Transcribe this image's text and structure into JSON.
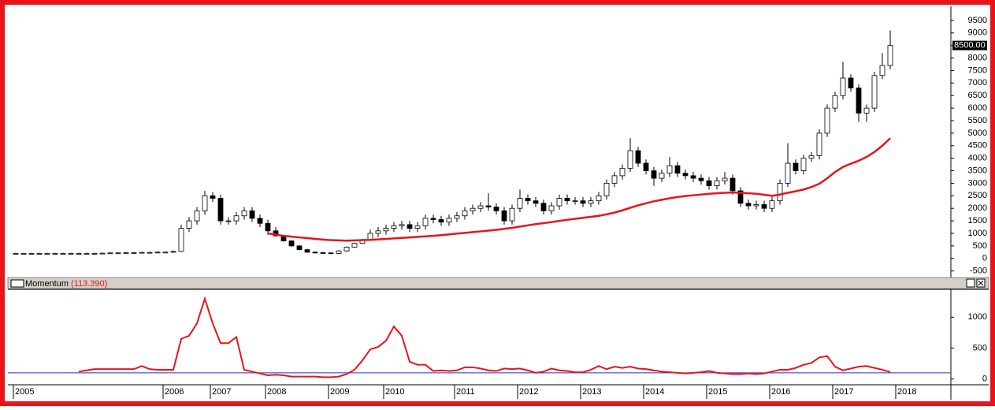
{
  "chart_data": [
    {
      "type": "candlestick",
      "categories": [
        "2005",
        null,
        null,
        null,
        null,
        null,
        null,
        null,
        null,
        null,
        null,
        null,
        null,
        null,
        null,
        null,
        null,
        null,
        null,
        "2006",
        null,
        null,
        null,
        null,
        null,
        "2007",
        null,
        null,
        null,
        null,
        null,
        null,
        "2008",
        null,
        null,
        null,
        null,
        null,
        null,
        null,
        "2009",
        null,
        null,
        null,
        null,
        null,
        null,
        "2010",
        null,
        null,
        null,
        null,
        null,
        null,
        null,
        null,
        "2011",
        null,
        null,
        null,
        null,
        null,
        null,
        null,
        "2012",
        null,
        null,
        null,
        null,
        null,
        null,
        null,
        "2013",
        null,
        null,
        null,
        null,
        null,
        null,
        null,
        "2014",
        null,
        null,
        null,
        null,
        null,
        null,
        null,
        "2015",
        null,
        null,
        null,
        null,
        null,
        null,
        null,
        "2016",
        null,
        null,
        null,
        null,
        null,
        null,
        null,
        "2017",
        null,
        null,
        null,
        null,
        null,
        null,
        null,
        "2018"
      ],
      "open": [
        200,
        200,
        200,
        200,
        200,
        200,
        200,
        200,
        200,
        200,
        200,
        200,
        210,
        220,
        220,
        230,
        230,
        240,
        240,
        250,
        250,
        280,
        1200,
        1500,
        1900,
        2500,
        2400,
        1500,
        1500,
        1700,
        1900,
        1600,
        1400,
        1100,
        900,
        700,
        500,
        350,
        250,
        230,
        220,
        200,
        300,
        450,
        600,
        750,
        1000,
        1100,
        1200,
        1300,
        1350,
        1200,
        1300,
        1600,
        1550,
        1450,
        1600,
        1700,
        1900,
        2000,
        2100,
        2050,
        1900,
        1500,
        2000,
        2400,
        2300,
        2200,
        1900,
        2100,
        2400,
        2300,
        2300,
        2200,
        2300,
        2500,
        3000,
        3300,
        3600,
        4300,
        3800,
        3500,
        3200,
        3400,
        3700,
        3400,
        3300,
        3200,
        3100,
        2900,
        3100,
        3200,
        2700,
        2200,
        2100,
        2150,
        2000,
        2300,
        3000,
        3800,
        3500,
        4000,
        4100,
        5000,
        6000,
        6500,
        7200,
        6800,
        5800,
        6000,
        7300,
        7700,
        null
      ],
      "high": [
        230,
        230,
        230,
        230,
        230,
        230,
        230,
        230,
        230,
        230,
        230,
        230,
        250,
        250,
        260,
        260,
        270,
        270,
        280,
        280,
        310,
        1350,
        1650,
        2050,
        2700,
        2650,
        2550,
        1650,
        1850,
        2050,
        2050,
        1750,
        1550,
        1250,
        930,
        730,
        530,
        380,
        280,
        260,
        250,
        330,
        480,
        630,
        780,
        1150,
        1250,
        1350,
        1450,
        1500,
        1500,
        1450,
        1750,
        1750,
        1700,
        1750,
        1850,
        2050,
        2150,
        2250,
        2600,
        2200,
        2050,
        2150,
        2750,
        2550,
        2450,
        2350,
        2250,
        2550,
        2550,
        2450,
        2450,
        2450,
        2650,
        3150,
        3450,
        3750,
        4800,
        4450,
        3950,
        3650,
        3550,
        4050,
        3850,
        3550,
        3450,
        3350,
        3250,
        3250,
        3450,
        3350,
        2850,
        2350,
        2300,
        2300,
        2450,
        3150,
        4600,
        3950,
        4150,
        4250,
        5150,
        6150,
        6650,
        7850,
        7350,
        6950,
        6150,
        7450,
        8200,
        9100,
        null
      ],
      "low": [
        170,
        170,
        170,
        170,
        170,
        170,
        170,
        170,
        170,
        170,
        170,
        170,
        180,
        190,
        190,
        200,
        200,
        210,
        210,
        220,
        220,
        250,
        1050,
        1350,
        1750,
        2250,
        1350,
        1350,
        1350,
        1550,
        1450,
        1250,
        950,
        870,
        670,
        470,
        320,
        220,
        200,
        190,
        170,
        170,
        270,
        420,
        570,
        720,
        850,
        950,
        1050,
        1150,
        1050,
        1050,
        1150,
        1400,
        1300,
        1300,
        1450,
        1550,
        1750,
        1850,
        1900,
        1750,
        1350,
        1350,
        1850,
        2150,
        2050,
        1750,
        1750,
        1950,
        2150,
        2150,
        2050,
        2050,
        2150,
        2350,
        2850,
        3150,
        3450,
        3650,
        3350,
        2900,
        3050,
        3250,
        3250,
        3150,
        3050,
        2950,
        2750,
        2750,
        2950,
        2550,
        2050,
        1950,
        1950,
        1850,
        1850,
        2150,
        2850,
        3350,
        3350,
        3850,
        3950,
        4850,
        5850,
        6350,
        6650,
        5450,
        5450,
        5850,
        7150,
        7550,
        null
      ],
      "close": [
        200,
        200,
        200,
        200,
        200,
        200,
        200,
        200,
        200,
        200,
        200,
        210,
        220,
        220,
        230,
        230,
        240,
        240,
        250,
        250,
        280,
        1200,
        1500,
        1900,
        2500,
        2400,
        1500,
        1500,
        1700,
        1900,
        1600,
        1400,
        1100,
        900,
        700,
        500,
        350,
        250,
        230,
        220,
        200,
        300,
        450,
        600,
        750,
        1000,
        1100,
        1200,
        1300,
        1350,
        1200,
        1300,
        1600,
        1550,
        1450,
        1600,
        1700,
        1900,
        2000,
        2100,
        2050,
        1900,
        1500,
        2000,
        2400,
        2300,
        2200,
        1900,
        2100,
        2400,
        2300,
        2300,
        2200,
        2300,
        2500,
        3000,
        3300,
        3600,
        4300,
        3800,
        3500,
        3200,
        3400,
        3700,
        3400,
        3300,
        3200,
        3100,
        2900,
        3100,
        3200,
        2700,
        2200,
        2100,
        2150,
        2000,
        2300,
        3000,
        3800,
        3500,
        4000,
        4100,
        5000,
        6000,
        6500,
        7200,
        6800,
        5800,
        6000,
        7300,
        7700,
        8500,
        null
      ],
      "last_label": "8500.00",
      "up_color": "#ffffff",
      "down_color": "#000000",
      "overlay": {
        "color": "#e8141b",
        "values": [
          null,
          null,
          null,
          null,
          null,
          null,
          null,
          null,
          null,
          null,
          null,
          null,
          null,
          null,
          null,
          null,
          null,
          null,
          null,
          null,
          null,
          null,
          null,
          null,
          null,
          null,
          null,
          null,
          null,
          null,
          null,
          null,
          1000,
          950,
          900,
          870,
          840,
          810,
          780,
          750,
          730,
          720,
          710,
          720,
          730,
          740,
          760,
          780,
          800,
          820,
          840,
          860,
          880,
          900,
          930,
          960,
          990,
          1020,
          1050,
          1080,
          1110,
          1140,
          1180,
          1220,
          1270,
          1320,
          1370,
          1410,
          1450,
          1500,
          1540,
          1580,
          1620,
          1660,
          1700,
          1760,
          1830,
          1920,
          2020,
          2120,
          2200,
          2280,
          2340,
          2400,
          2450,
          2490,
          2520,
          2550,
          2580,
          2600,
          2620,
          2630,
          2620,
          2600,
          2580,
          2540,
          2500,
          2550,
          2620,
          2680,
          2750,
          2850,
          2980,
          3200,
          3450,
          3650,
          3780,
          3900,
          4050,
          4250,
          4500,
          4800,
          null
        ]
      },
      "ylim": [
        -700,
        10000
      ],
      "yticks": [
        -500,
        0,
        500,
        1000,
        1500,
        2000,
        2500,
        3000,
        3500,
        4000,
        4500,
        5000,
        5500,
        6000,
        6500,
        7000,
        7500,
        8000,
        8500,
        9000,
        9500
      ]
    },
    {
      "type": "line",
      "title": "Momentum",
      "value_label": "(113.390)",
      "series": [
        {
          "color": "#e8141b",
          "values": [
            null,
            null,
            null,
            null,
            null,
            null,
            null,
            null,
            120,
            140,
            160,
            160,
            160,
            160,
            160,
            160,
            210,
            160,
            150,
            150,
            150,
            650,
            700,
            900,
            1300,
            900,
            580,
            580,
            680,
            150,
            120,
            90,
            60,
            70,
            60,
            40,
            40,
            40,
            40,
            30,
            30,
            40,
            80,
            150,
            300,
            480,
            520,
            620,
            850,
            700,
            280,
            230,
            230,
            130,
            140,
            130,
            140,
            190,
            190,
            170,
            140,
            130,
            170,
            160,
            170,
            140,
            100,
            120,
            170,
            140,
            130,
            110,
            110,
            150,
            210,
            160,
            200,
            180,
            200,
            170,
            160,
            140,
            120,
            110,
            100,
            90,
            100,
            110,
            130,
            100,
            90,
            80,
            80,
            90,
            80,
            90,
            120,
            150,
            150,
            180,
            230,
            260,
            350,
            370,
            200,
            140,
            170,
            200,
            210,
            180,
            150,
            113.39,
            null
          ]
        }
      ],
      "reference": {
        "value": 100,
        "color": "#2b2bd6"
      },
      "ylim": [
        -80,
        1450
      ],
      "yticks": [
        0,
        500,
        1000
      ]
    }
  ]
}
